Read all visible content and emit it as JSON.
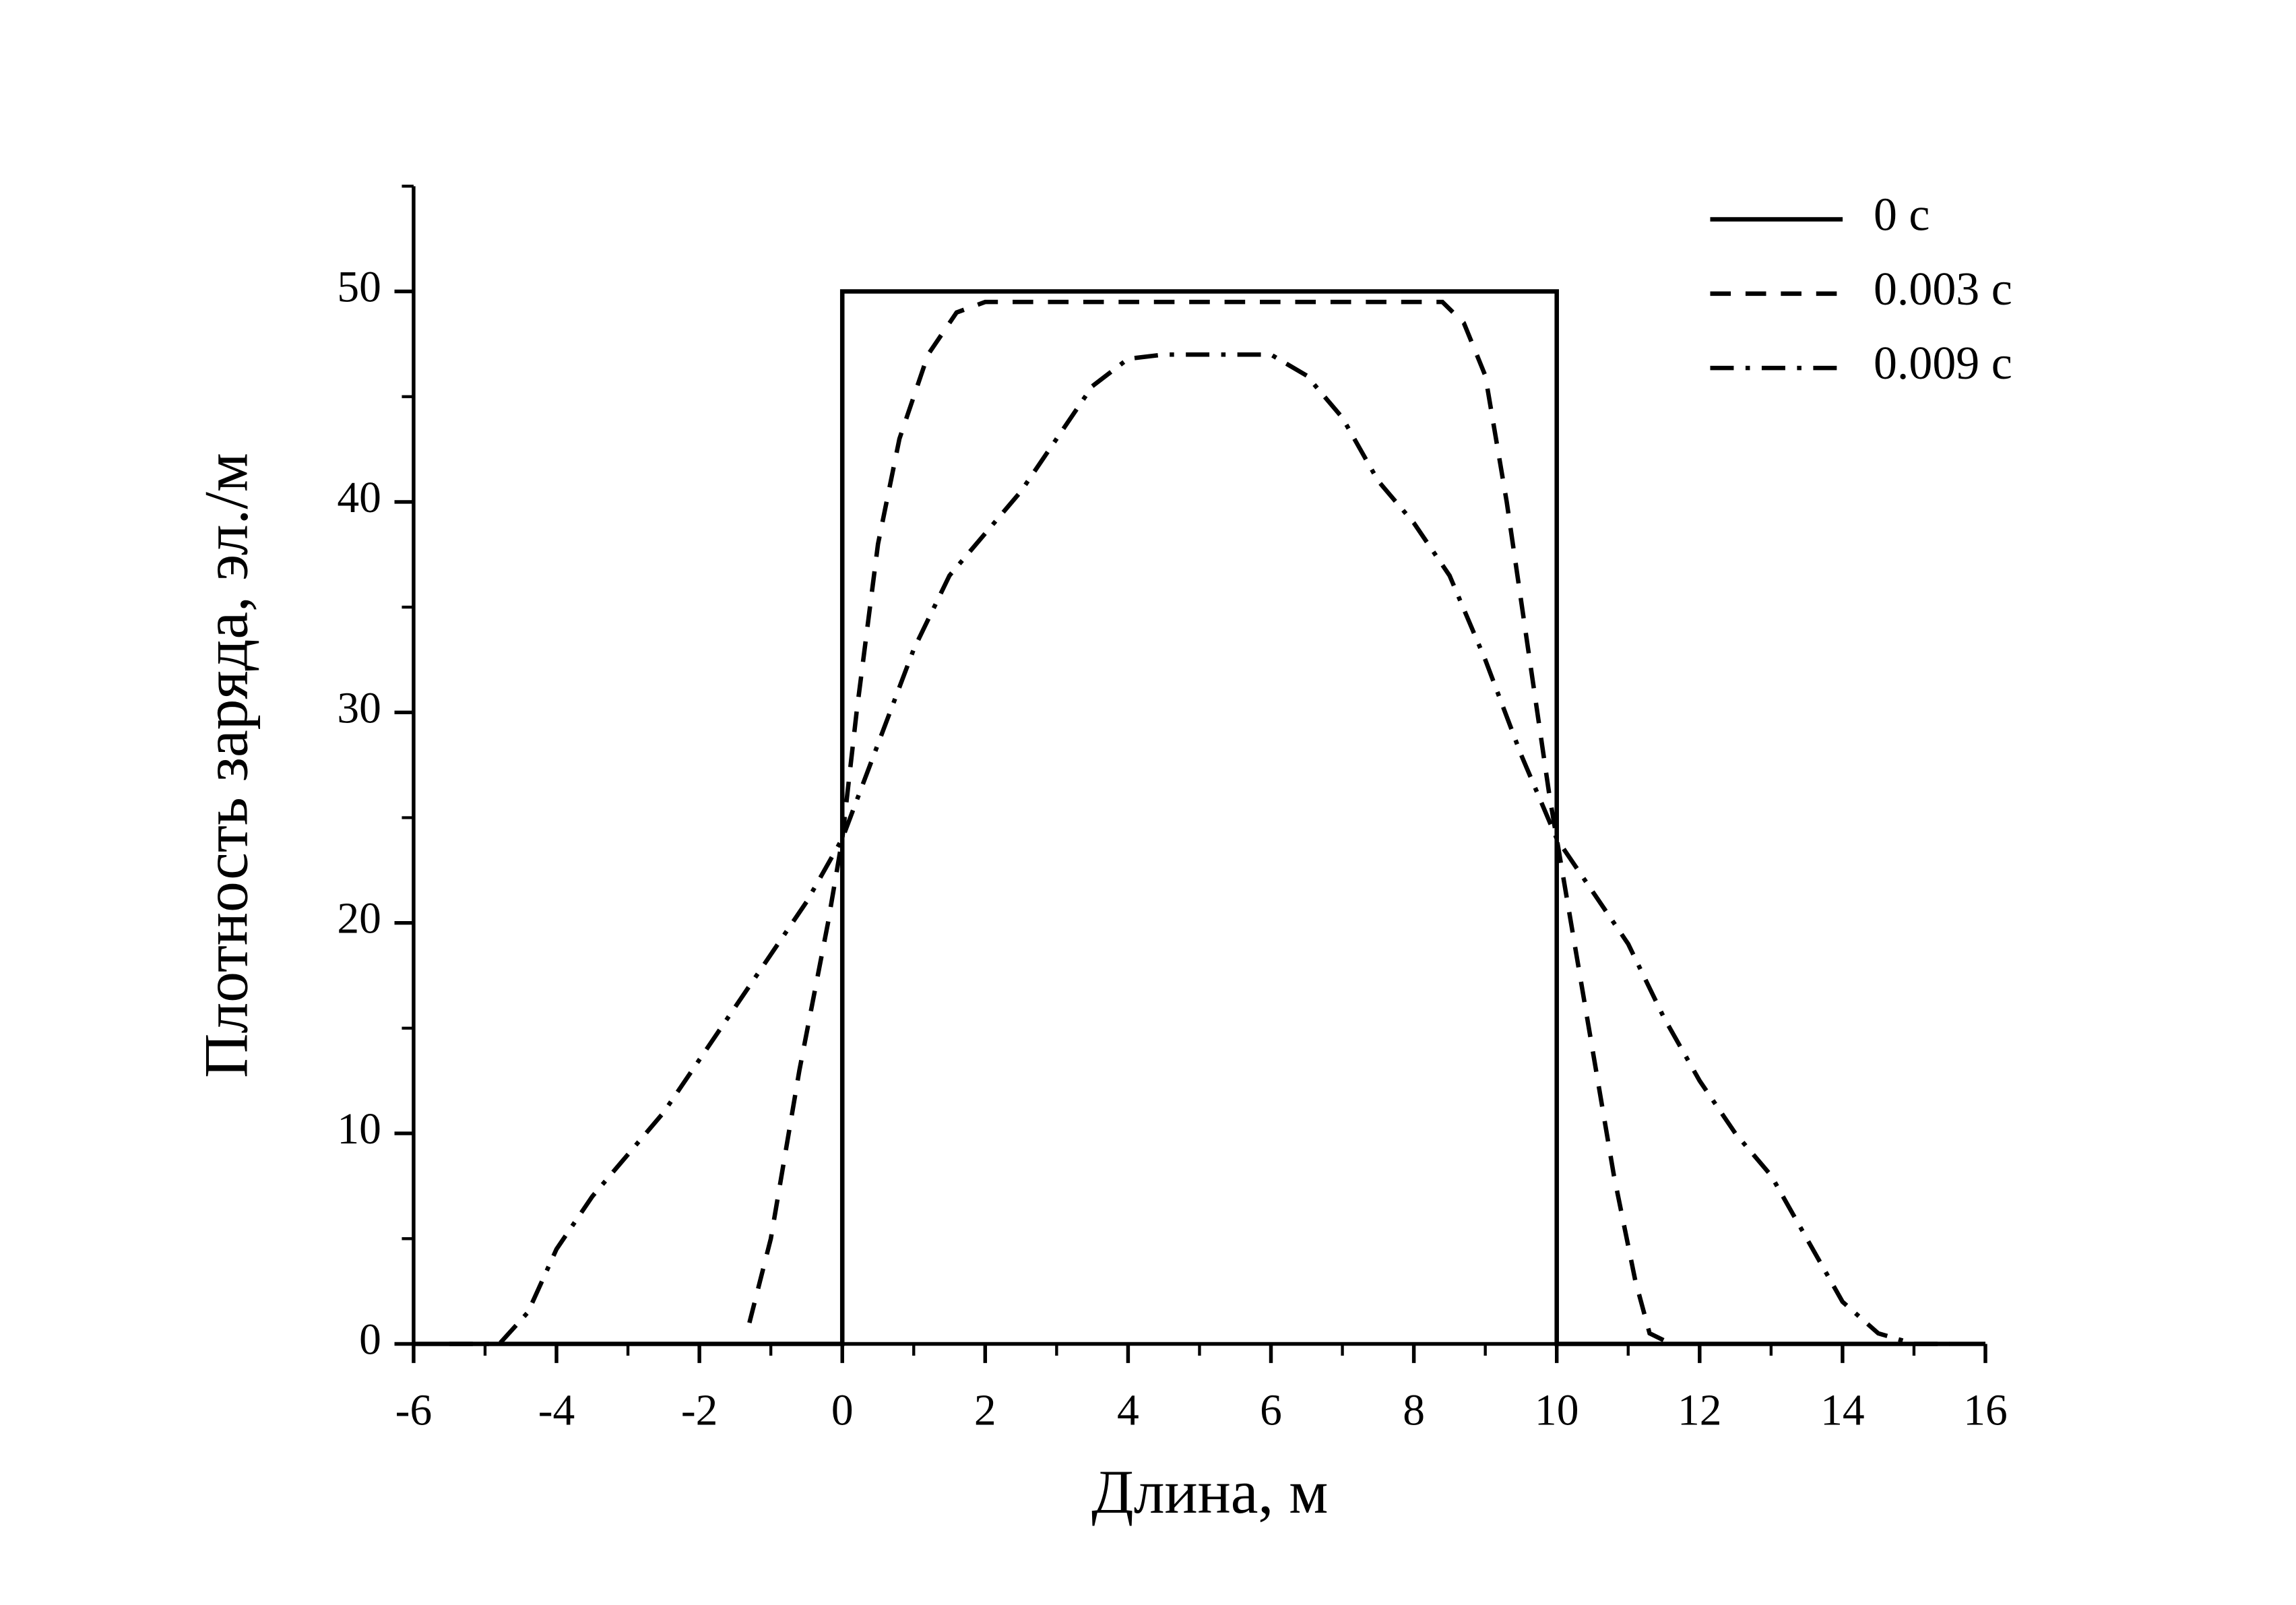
{
  "chart_data": {
    "type": "line",
    "xlabel": "Длина, м",
    "ylabel": "Плотность заряда, эл./м",
    "xlim": [
      -6,
      16
    ],
    "ylim": [
      0,
      55
    ],
    "xticks": [
      -6,
      -4,
      -2,
      0,
      2,
      4,
      6,
      8,
      10,
      12,
      14,
      16
    ],
    "yticks": [
      0,
      10,
      20,
      30,
      40,
      50
    ],
    "xticks_minor": [
      -5,
      -3,
      -1,
      1,
      3,
      5,
      7,
      9,
      11,
      13,
      15
    ],
    "yticks_minor": [
      5,
      15,
      25,
      35,
      45,
      55
    ],
    "legend": "upper right",
    "series": [
      {
        "name": "0 с",
        "color": "#000000",
        "dash": "solid",
        "x": [
          -6,
          0,
          0,
          10,
          10,
          16
        ],
        "values": [
          0,
          0,
          50,
          50,
          0,
          0
        ]
      },
      {
        "name": "0.003 с",
        "color": "#000000",
        "dash": "dashed",
        "x": [
          -1.3,
          -1,
          -0.6,
          -0.2,
          0,
          0.2,
          0.5,
          0.8,
          1.2,
          1.6,
          2,
          5,
          8.4,
          8.7,
          9,
          9.3,
          9.6,
          9.9,
          10,
          10.2,
          10.5,
          10.8,
          11.1,
          11.3,
          11.6
        ],
        "values": [
          1,
          5,
          13,
          20,
          24,
          30,
          38,
          43,
          47,
          49,
          49.5,
          49.5,
          49.5,
          48.5,
          46,
          40,
          33,
          26,
          24,
          20,
          14,
          8,
          3,
          0.5,
          0
        ]
      },
      {
        "name": "0.009 с",
        "color": "#000000",
        "dash": "dashdot",
        "x": [
          -5.5,
          -4.8,
          -4.4,
          -4,
          -3.5,
          -3,
          -2.5,
          -2,
          -1.5,
          -1,
          -0.5,
          0,
          0.5,
          1,
          1.5,
          2,
          2.5,
          3,
          3.5,
          4,
          4.5,
          5.5,
          6,
          6.5,
          7,
          7.5,
          8,
          8.5,
          9,
          9.5,
          10,
          10.5,
          11,
          11.5,
          12,
          12.5,
          13,
          13.5,
          14,
          14.5,
          15,
          15.5
        ],
        "values": [
          0,
          0,
          1.5,
          4.5,
          7,
          9,
          11,
          13.5,
          16,
          18.5,
          21,
          24,
          28.5,
          33,
          36.5,
          38.5,
          40.5,
          43,
          45.5,
          46.8,
          47,
          47,
          47,
          46,
          44,
          41,
          39,
          36.5,
          32.5,
          28,
          24,
          21.5,
          19,
          15.5,
          12.5,
          10,
          8,
          5,
          2,
          0.5,
          0,
          0
        ]
      }
    ]
  }
}
